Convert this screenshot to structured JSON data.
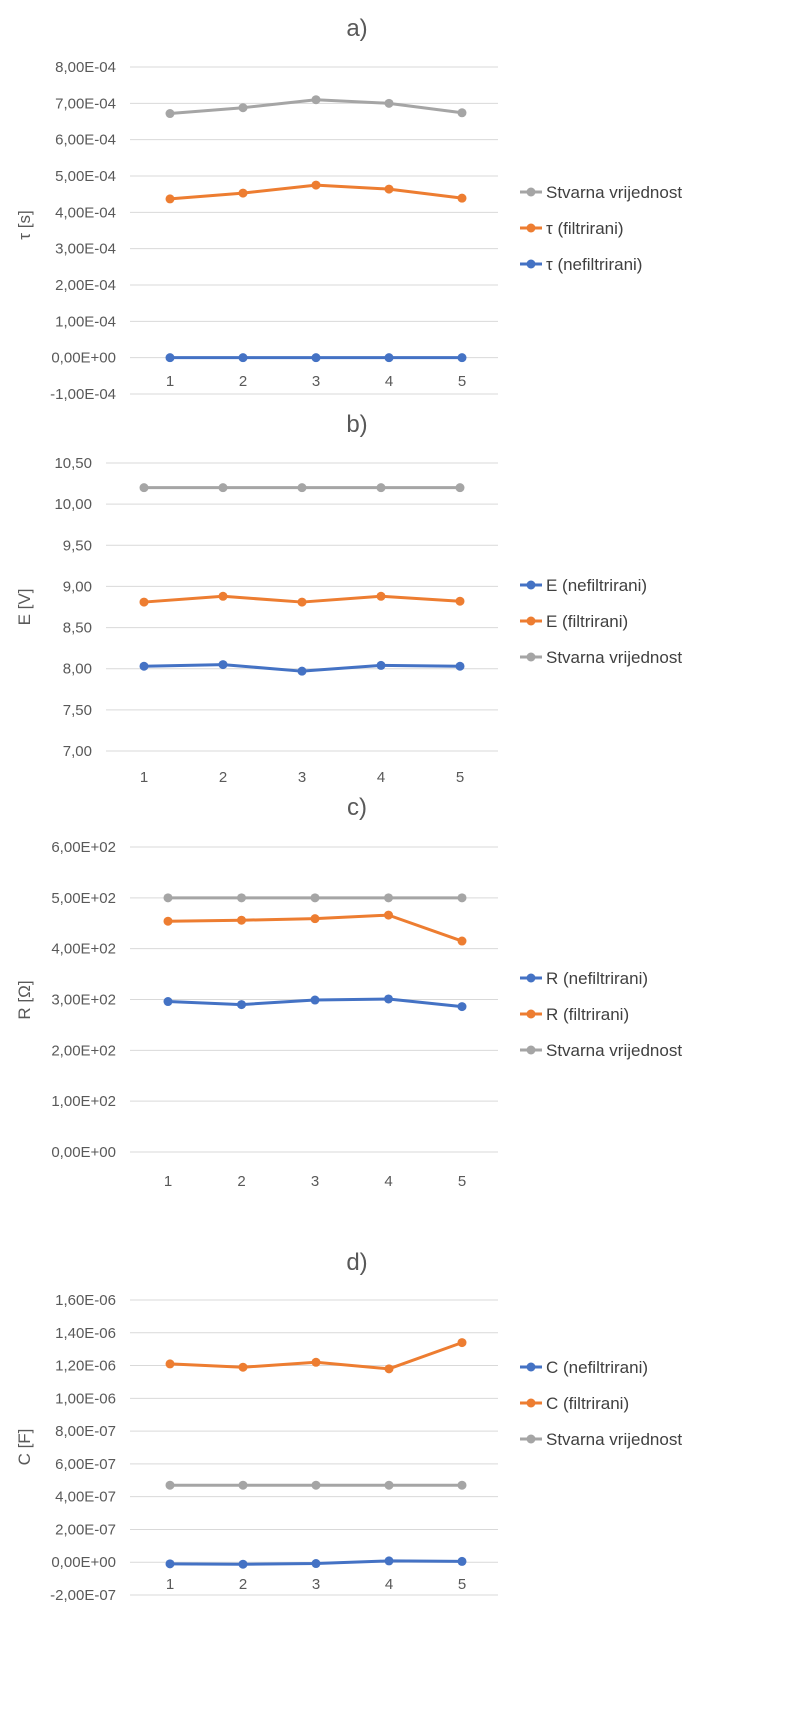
{
  "colors": {
    "blue": "#4472c4",
    "orange": "#ed7d31",
    "gray": "#a5a5a5"
  },
  "chart_data": [
    {
      "type": "line",
      "title": "a)",
      "xlabel": "",
      "ylabel": "τ [s]",
      "categories": [
        "1",
        "2",
        "3",
        "4",
        "5"
      ],
      "ylim": [
        -0.0001,
        0.0008
      ],
      "yticks": [
        "-1,00E-04",
        "0,00E+00",
        "1,00E-04",
        "2,00E-04",
        "3,00E-04",
        "4,00E-04",
        "5,00E-04",
        "6,00E-04",
        "7,00E-04",
        "8,00E-04"
      ],
      "grid": true,
      "legend": "right",
      "series": [
        {
          "name": "τ (nefiltrirani)",
          "color": "blue",
          "values": [
            0.0,
            0.0,
            0.0,
            0.0,
            0.0
          ]
        },
        {
          "name": "τ (filtrirani)",
          "color": "orange",
          "values": [
            0.000437,
            0.000453,
            0.000475,
            0.000464,
            0.000439
          ]
        },
        {
          "name": "Stvarna vrijednost",
          "color": "gray",
          "values": [
            0.000672,
            0.000688,
            0.00071,
            0.0007,
            0.000674
          ]
        }
      ],
      "legend_order": [
        2,
        1,
        0
      ]
    },
    {
      "type": "line",
      "title": "b)",
      "xlabel": "",
      "ylabel": "E [V]",
      "categories": [
        "1",
        "2",
        "3",
        "4",
        "5"
      ],
      "ylim": [
        7.0,
        10.5
      ],
      "yticks": [
        "7,00",
        "7,50",
        "8,00",
        "8,50",
        "9,00",
        "9,50",
        "10,00",
        "10,50"
      ],
      "grid": true,
      "legend": "right",
      "series": [
        {
          "name": "E (nefiltrirani)",
          "color": "blue",
          "values": [
            8.03,
            8.05,
            7.97,
            8.04,
            8.03
          ]
        },
        {
          "name": "E (filtrirani)",
          "color": "orange",
          "values": [
            8.81,
            8.88,
            8.81,
            8.88,
            8.82
          ]
        },
        {
          "name": "Stvarna vrijednost",
          "color": "gray",
          "values": [
            10.2,
            10.2,
            10.2,
            10.2,
            10.2
          ]
        }
      ],
      "legend_order": [
        0,
        1,
        2
      ]
    },
    {
      "type": "line",
      "title": "c)",
      "xlabel": "",
      "ylabel": "R [Ω]",
      "categories": [
        "1",
        "2",
        "3",
        "4",
        "5"
      ],
      "ylim": [
        0,
        600
      ],
      "yticks": [
        "0,00E+00",
        "1,00E+02",
        "2,00E+02",
        "3,00E+02",
        "4,00E+02",
        "5,00E+02",
        "6,00E+02"
      ],
      "grid": true,
      "legend": "right",
      "series": [
        {
          "name": "R (nefiltrirani)",
          "color": "blue",
          "values": [
            296,
            290,
            299,
            301,
            286
          ]
        },
        {
          "name": "R (filtrirani)",
          "color": "orange",
          "values": [
            454,
            456,
            459,
            466,
            415
          ]
        },
        {
          "name": "Stvarna vrijednost",
          "color": "gray",
          "values": [
            500,
            500,
            500,
            500,
            500
          ]
        }
      ],
      "legend_order": [
        0,
        1,
        2
      ]
    },
    {
      "type": "line",
      "title": "d)",
      "xlabel": "",
      "ylabel": "C [F]",
      "categories": [
        "1",
        "2",
        "3",
        "4",
        "5"
      ],
      "ylim": [
        -2e-07,
        1.6e-06
      ],
      "yticks": [
        "-2,00E-07",
        "0,00E+00",
        "2,00E-07",
        "4,00E-07",
        "6,00E-07",
        "8,00E-07",
        "1,00E-06",
        "1,20E-06",
        "1,40E-06",
        "1,60E-06"
      ],
      "grid": true,
      "legend": "right",
      "series": [
        {
          "name": "C (nefiltrirani)",
          "color": "blue",
          "values": [
            -1e-08,
            -1.2e-08,
            -8e-09,
            8e-09,
            5e-09
          ]
        },
        {
          "name": "C (filtrirani)",
          "color": "orange",
          "values": [
            1.21e-06,
            1.19e-06,
            1.22e-06,
            1.18e-06,
            1.34e-06
          ]
        },
        {
          "name": "Stvarna vrijednost",
          "color": "gray",
          "values": [
            4.7e-07,
            4.7e-07,
            4.7e-07,
            4.7e-07,
            4.7e-07
          ]
        }
      ],
      "legend_order": [
        0,
        1,
        2
      ]
    }
  ]
}
